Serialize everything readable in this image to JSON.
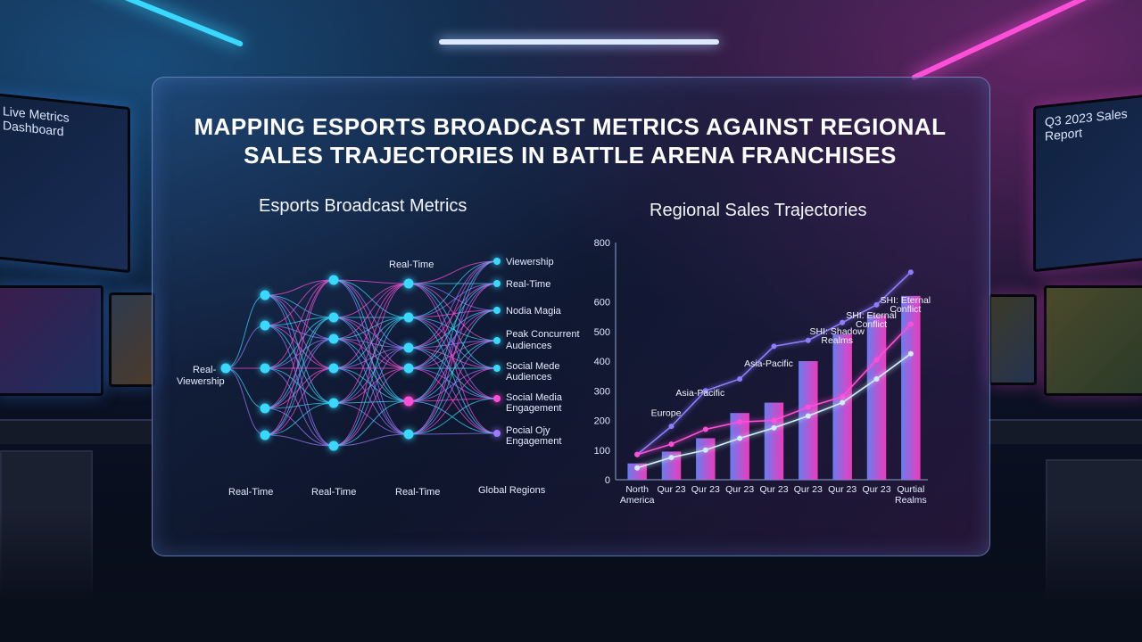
{
  "title_line1": "MAPPING ESPORTS BROADCAST METRICS AGAINST REGIONAL",
  "title_line2": "SALES TRAJECTORIES IN BATTLE ARENA FRANCHISES",
  "left_monitor_label": "Live Metrics Dashboard",
  "right_monitor_label": "Q3 2023 Sales Report",
  "network": {
    "subtitle": "Esports Broadcast Metrics",
    "input_label_line1": "Real-",
    "input_label_line2": "Viewership",
    "top_label": "Real-Time",
    "outputs": [
      "Viewership",
      "Real-Time",
      "Nodia Magia",
      "Peak Concurrent",
      "Audiences",
      "Social Mede",
      "Audiences",
      "Social Media",
      "Engagement",
      "Pocial Ojy",
      "Engagement"
    ],
    "bottom_labels": [
      "Real-Time",
      "Real-Time",
      "Real-Time",
      "Global Regions"
    ],
    "colors": {
      "cyan": "#39d9ff",
      "magenta": "#ff4fd8",
      "violet": "#9c7bff"
    }
  },
  "chart_data": {
    "type": "bar",
    "title": "Regional Sales Trajectories",
    "categories": [
      "North America",
      "Qur 23",
      "Qur 23",
      "Qur 23",
      "Qur 23",
      "Qur 23",
      "Qur 23",
      "Qur 23",
      "Qurtial Realms"
    ],
    "values": [
      55,
      95,
      140,
      225,
      260,
      400,
      490,
      555,
      620
    ],
    "ylim": [
      0,
      800
    ],
    "yticks": [
      0,
      100,
      200,
      300,
      400,
      500,
      600,
      800
    ],
    "series_lines": [
      {
        "color": "#8f7dff",
        "values": [
          85,
          180,
          300,
          340,
          450,
          470,
          530,
          590,
          700
        ]
      },
      {
        "color": "#ff4fd8",
        "values": [
          85,
          120,
          170,
          195,
          200,
          245,
          280,
          405,
          525
        ]
      },
      {
        "color": "#cfefff",
        "values": [
          40,
          75,
          100,
          140,
          175,
          215,
          260,
          340,
          425
        ]
      }
    ],
    "annotations": [
      {
        "text": "Europe",
        "idx": 1,
        "value": 215
      },
      {
        "text": "Asia-Pacific",
        "idx": 2,
        "value": 282
      },
      {
        "text": "Asia-Pacific",
        "idx": 4,
        "value": 382
      },
      {
        "text": "SHI: Shadow",
        "idx": 6,
        "value": 490
      },
      {
        "text": "Realms",
        "idx": 6,
        "value": 460
      },
      {
        "text": "SHI: Eternal",
        "idx": 7,
        "value": 545
      },
      {
        "text": "Conflict",
        "idx": 7,
        "value": 515
      },
      {
        "text": "SHI: Eternal",
        "idx": 8,
        "value": 595
      },
      {
        "text": "Conflict",
        "idx": 8,
        "value": 565
      }
    ],
    "bar_color_start": "#6f86ff",
    "bar_color_end": "#ff3ec8"
  }
}
